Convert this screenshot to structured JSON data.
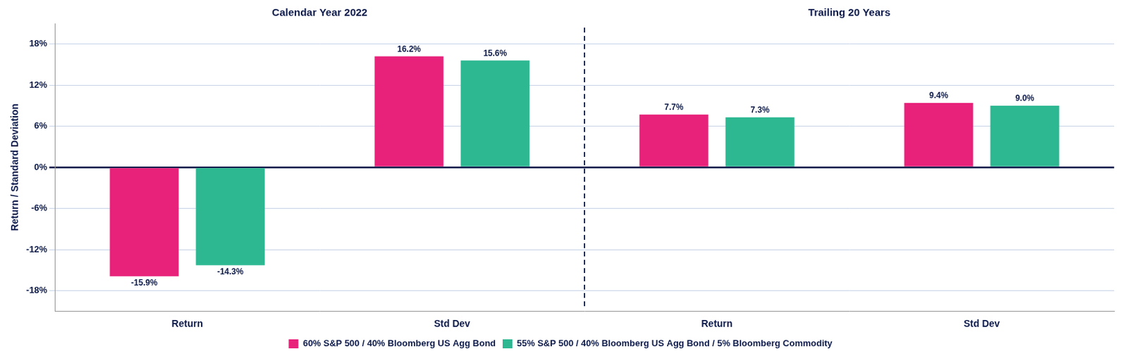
{
  "chart_data": {
    "type": "bar",
    "annotations": [
      "Calendar Year 2022",
      "Trailing 20 Years"
    ],
    "categories": [
      "Return",
      "Std Dev",
      "Return",
      "Std Dev"
    ],
    "series": [
      {
        "name": "60% S&P 500 / 40% Bloomberg US Agg Bond",
        "color": "#E8217A",
        "values": [
          -15.9,
          16.2,
          7.7,
          9.4
        ],
        "value_labels": [
          "-15.9%",
          "16.2%",
          "7.7%",
          "9.4%"
        ]
      },
      {
        "name": "55% S&P 500 / 40% Bloomberg US Agg Bond / 5% Bloomberg Commodity",
        "color": "#2DB892",
        "values": [
          -14.3,
          15.6,
          7.3,
          9.0
        ],
        "value_labels": [
          "-14.3%",
          "15.6%",
          "7.3%",
          "9.0%"
        ]
      }
    ],
    "y_label": "Return / Standard Deviation",
    "ylim": [
      -21,
      21
    ],
    "yticks": [
      {
        "value": -18,
        "label": "-18%"
      },
      {
        "value": -12,
        "label": "-12%"
      },
      {
        "value": -6,
        "label": "-6%"
      },
      {
        "value": 0,
        "label": "0%"
      },
      {
        "value": 6,
        "label": "6%"
      },
      {
        "value": 12,
        "label": "12%"
      },
      {
        "value": 18,
        "label": "18%"
      }
    ],
    "grid": true,
    "legend": "bottom",
    "data_labels": true
  }
}
